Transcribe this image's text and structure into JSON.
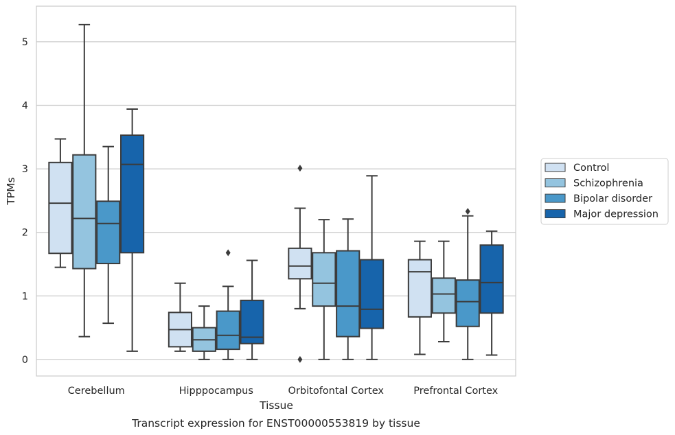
{
  "chart_data": {
    "type": "box",
    "xlabel": "Tissue",
    "ylabel": "TPMs",
    "caption": "Transcript expression for ENST00000553819 by tissue",
    "categories": [
      "Cerebellum",
      "Hipppocampus",
      "Orbitofontal Cortex",
      "Prefrontal Cortex"
    ],
    "yticks": [
      0,
      1,
      2,
      3,
      4,
      5
    ],
    "ylim": [
      -0.26,
      5.56
    ],
    "grid": true,
    "legend_position": "right",
    "series": [
      {
        "name": "Control",
        "color": "#d0e1f2",
        "boxes": [
          {
            "whislo": 1.45,
            "q1": 1.67,
            "med": 2.46,
            "q3": 3.1,
            "whishi": 3.47,
            "fliers": []
          },
          {
            "whislo": 0.13,
            "q1": 0.2,
            "med": 0.47,
            "q3": 0.74,
            "whishi": 1.2,
            "fliers": []
          },
          {
            "whislo": 0.8,
            "q1": 1.27,
            "med": 1.47,
            "q3": 1.75,
            "whishi": 2.38,
            "fliers": [
              3.01,
              0.0
            ]
          },
          {
            "whislo": 0.08,
            "q1": 0.67,
            "med": 1.38,
            "q3": 1.57,
            "whishi": 1.86,
            "fliers": []
          }
        ]
      },
      {
        "name": "Schizophrenia",
        "color": "#94c4df",
        "boxes": [
          {
            "whislo": 0.36,
            "q1": 1.43,
            "med": 2.22,
            "q3": 3.22,
            "whishi": 5.27,
            "fliers": []
          },
          {
            "whislo": 0.0,
            "q1": 0.13,
            "med": 0.31,
            "q3": 0.5,
            "whishi": 0.84,
            "fliers": []
          },
          {
            "whislo": 0.0,
            "q1": 0.84,
            "med": 1.2,
            "q3": 1.68,
            "whishi": 2.2,
            "fliers": []
          },
          {
            "whislo": 0.28,
            "q1": 0.73,
            "med": 1.03,
            "q3": 1.28,
            "whishi": 1.86,
            "fliers": []
          }
        ]
      },
      {
        "name": "Bipolar disorder",
        "color": "#4a98c9",
        "boxes": [
          {
            "whislo": 0.57,
            "q1": 1.51,
            "med": 2.14,
            "q3": 2.49,
            "whishi": 3.35,
            "fliers": []
          },
          {
            "whislo": 0.0,
            "q1": 0.16,
            "med": 0.38,
            "q3": 0.76,
            "whishi": 1.15,
            "fliers": [
              1.68
            ]
          },
          {
            "whislo": 0.0,
            "q1": 0.36,
            "med": 0.84,
            "q3": 1.71,
            "whishi": 2.21,
            "fliers": []
          },
          {
            "whislo": 0.0,
            "q1": 0.52,
            "med": 0.91,
            "q3": 1.25,
            "whishi": 2.26,
            "fliers": [
              2.33
            ]
          }
        ]
      },
      {
        "name": "Major depression",
        "color": "#1764ab",
        "boxes": [
          {
            "whislo": 0.13,
            "q1": 1.68,
            "med": 3.07,
            "q3": 3.53,
            "whishi": 3.94,
            "fliers": []
          },
          {
            "whislo": 0.0,
            "q1": 0.25,
            "med": 0.35,
            "q3": 0.93,
            "whishi": 1.56,
            "fliers": []
          },
          {
            "whislo": 0.0,
            "q1": 0.49,
            "med": 0.79,
            "q3": 1.57,
            "whishi": 2.89,
            "fliers": []
          },
          {
            "whislo": 0.07,
            "q1": 0.73,
            "med": 1.21,
            "q3": 1.8,
            "whishi": 2.02,
            "fliers": []
          }
        ]
      }
    ]
  }
}
